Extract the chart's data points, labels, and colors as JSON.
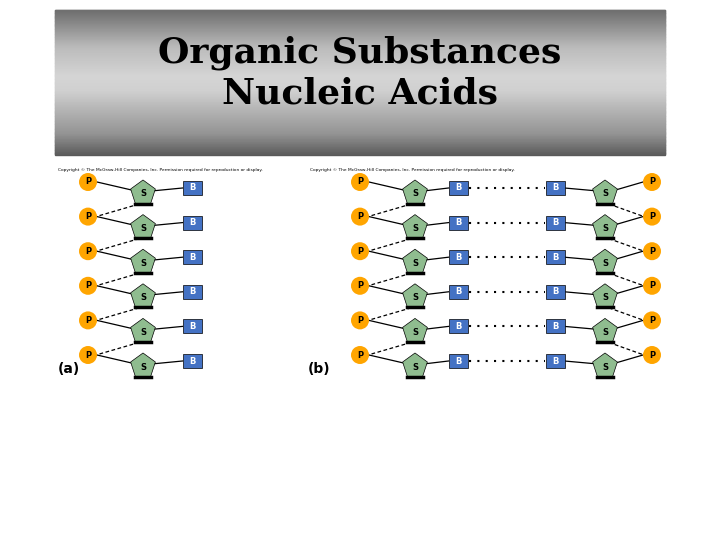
{
  "title_line1": "Organic Substances",
  "title_line2": "Nucleic Acids",
  "title_fontsize": 26,
  "orange_color": "#FFA500",
  "green_color": "#8FBC8F",
  "blue_color": "#4472C4",
  "label_P": "P",
  "label_S": "S",
  "label_B": "B",
  "num_rows": 6,
  "copyright_text": "Copyright © The McGraw-Hill Companies, Inc. Permission required for reproduction or display.",
  "label_a": "(a)",
  "label_b": "(b)",
  "fig_width": 7.2,
  "fig_height": 5.4,
  "dpi": 100
}
